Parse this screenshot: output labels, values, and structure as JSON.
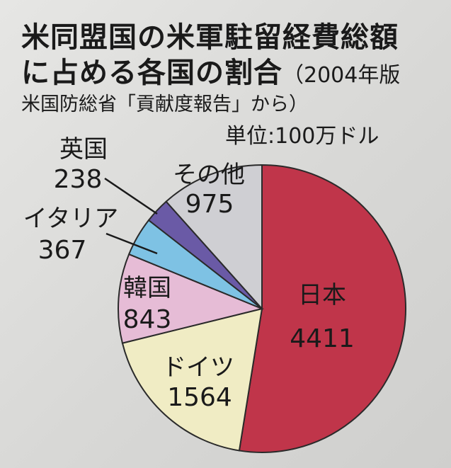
{
  "header": {
    "title_line1": "米同盟国の米軍駐留経費総額",
    "title_line2": "に占める各国の割合",
    "title_note": "（2004年版",
    "source": "米国防総省「貢献度報告」から）",
    "unit": "単位:100万ドル"
  },
  "chart_data": {
    "type": "pie",
    "title": "米同盟国の米軍駐留経費総額に占める各国の割合",
    "unit": "100万ドル",
    "start": "12 o'clock",
    "direction": "clockwise",
    "slices": [
      {
        "label": "日本",
        "value": 4411,
        "display": "4411",
        "color": "#c0354a"
      },
      {
        "label": "ドイツ",
        "value": 1564,
        "display": "1564",
        "color": "#f0ecc4"
      },
      {
        "label": "韓国",
        "value": 843,
        "display": "843",
        "color": "#e6bcd6"
      },
      {
        "label": "イタリア",
        "value": 367,
        "display": "367",
        "color": "#7ec2e4"
      },
      {
        "label": "英国",
        "value": 238,
        "display": "238",
        "color": "#6a5aa6"
      },
      {
        "label": "その他",
        "value": 975,
        "display": "975",
        "color": "#cfcfd3"
      }
    ]
  }
}
